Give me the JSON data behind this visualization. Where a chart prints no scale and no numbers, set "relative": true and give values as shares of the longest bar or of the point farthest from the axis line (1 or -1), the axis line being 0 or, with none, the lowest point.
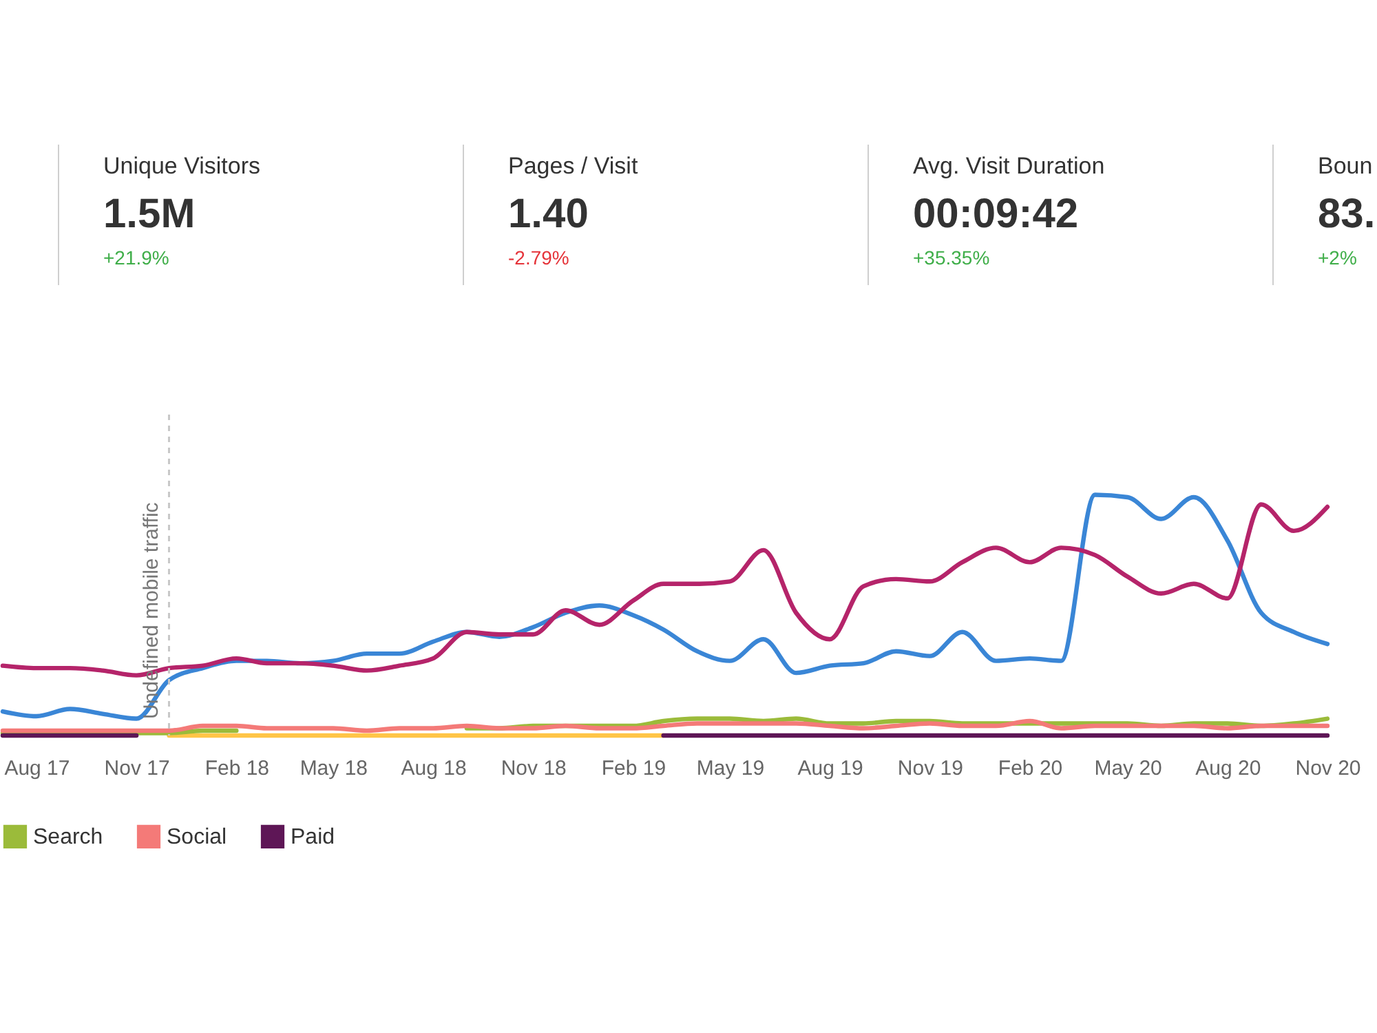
{
  "chart_data": [
    {
      "type": "other",
      "annotations": [
        "Unique Visitors",
        "1.5M",
        "+21.9%",
        "Pages / Visit",
        "1.40",
        "-2.79%",
        "Avg. Visit Duration",
        "00:09:42",
        "+35.35%",
        "Boun",
        "83.",
        "+2%"
      ]
    },
    {
      "type": "line",
      "relative": true,
      "legend": "bottom left",
      "x": [
        "2017-07-01",
        "2017-08-01",
        "2017-09-01",
        "2017-10-01",
        "2017-11-01",
        "2017-12-01",
        "2018-01-01",
        "2018-02-01",
        "2018-03-01",
        "2018-04-01",
        "2018-05-01",
        "2018-06-01",
        "2018-07-01",
        "2018-08-01",
        "2018-09-01",
        "2018-10-01",
        "2018-11-01",
        "2018-12-01",
        "2019-01-01",
        "2019-02-01",
        "2019-03-01",
        "2019-04-01",
        "2019-05-01",
        "2019-06-01",
        "2019-07-01",
        "2019-08-01",
        "2019-09-01",
        "2019-10-01",
        "2019-11-01",
        "2019-12-01",
        "2020-01-01",
        "2020-02-01",
        "2020-03-01",
        "2020-04-01",
        "2020-05-01",
        "2020-06-01",
        "2020-07-01",
        "2020-08-01",
        "2020-09-01",
        "2020-10-01",
        "2020-11-01"
      ],
      "xlim": [
        "2017-07-01",
        "2020-11-01"
      ],
      "xticks": [
        {
          "value": "2017-08-01",
          "label": "Aug 17"
        },
        {
          "value": "2017-11-01",
          "label": "Nov 17"
        },
        {
          "value": "2018-02-01",
          "label": "Feb 18"
        },
        {
          "value": "2018-05-01",
          "label": "May 18"
        },
        {
          "value": "2018-08-01",
          "label": "Aug 18"
        },
        {
          "value": "2018-11-01",
          "label": "Nov 18"
        },
        {
          "value": "2019-02-01",
          "label": "Feb 19"
        },
        {
          "value": "2019-05-01",
          "label": "May 19"
        },
        {
          "value": "2019-08-01",
          "label": "Aug 19"
        },
        {
          "value": "2019-11-01",
          "label": "Nov 19"
        },
        {
          "value": "2020-02-01",
          "label": "Feb 20"
        },
        {
          "value": "2020-05-01",
          "label": "May 20"
        },
        {
          "value": "2020-08-01",
          "label": "Aug 20"
        },
        {
          "value": "2020-11-01",
          "label": "Nov 20"
        }
      ],
      "series": [
        {
          "color": "#ffc547",
          "x": [
            "2017-12-01",
            "2018-03-01",
            "2018-06-01",
            "2018-09-01",
            "2018-12-01",
            "2019-03-01"
          ],
          "values": [
            0,
            0,
            0,
            0,
            0,
            0
          ]
        },
        {
          "color": "#3a86d6",
          "values": [
            0.1,
            0.08,
            0.11,
            0.09,
            0.07,
            0.23,
            0.28,
            0.31,
            0.31,
            0.3,
            0.31,
            0.34,
            0.34,
            0.39,
            0.43,
            0.41,
            0.45,
            0.51,
            0.54,
            0.5,
            0.44,
            0.35,
            0.31,
            0.4,
            0.26,
            0.29,
            0.3,
            0.35,
            0.33,
            0.43,
            0.31,
            0.32,
            0.31,
            1,
            0.99,
            0.9,
            0.99,
            0.81,
            0.51,
            0.43,
            0.38
          ]
        },
        {
          "color": "#b5246a",
          "values": [
            0.29,
            0.28,
            0.28,
            0.27,
            0.25,
            0.28,
            0.29,
            0.32,
            0.3,
            0.3,
            0.29,
            0.27,
            0.29,
            0.32,
            0.43,
            0.42,
            0.42,
            0.52,
            0.46,
            0.56,
            0.63,
            0.63,
            0.64,
            0.77,
            0.51,
            0.4,
            0.62,
            0.65,
            0.64,
            0.72,
            0.78,
            0.72,
            0.78,
            0.75,
            0.66,
            0.59,
            0.63,
            0.57,
            0.96,
            0.85,
            0.95
          ]
        },
        {
          "name": "Search",
          "color": "#9bbb3a",
          "values": [
            0.01,
            0.01,
            0.01,
            0.01,
            0.01,
            0.01,
            0.02,
            0.02,
            null,
            null,
            null,
            null,
            null,
            null,
            0.03,
            0.03,
            0.04,
            0.04,
            0.04,
            0.04,
            0.06,
            0.07,
            0.07,
            0.06,
            0.07,
            0.05,
            0.05,
            0.06,
            0.06,
            0.05,
            0.05,
            0.05,
            0.05,
            0.05,
            0.05,
            0.04,
            0.05,
            0.05,
            0.04,
            0.05,
            0.07
          ]
        },
        {
          "name": "Social",
          "color": "#f47a78",
          "values": [
            0.02,
            0.02,
            0.02,
            0.02,
            0.02,
            0.02,
            0.04,
            0.04,
            0.03,
            0.03,
            0.03,
            0.02,
            0.03,
            0.03,
            0.04,
            0.03,
            0.03,
            0.04,
            0.03,
            0.03,
            0.04,
            0.05,
            0.05,
            0.05,
            0.05,
            0.04,
            0.03,
            0.04,
            0.05,
            0.04,
            0.04,
            0.06,
            0.03,
            0.04,
            0.04,
            0.04,
            0.04,
            0.03,
            0.04,
            0.04,
            0.04
          ]
        },
        {
          "name": "Paid",
          "color": "#5e1656",
          "values": [
            0,
            0,
            0,
            0,
            0,
            null,
            null,
            null,
            null,
            null,
            null,
            null,
            null,
            null,
            null,
            null,
            null,
            null,
            null,
            null,
            0,
            0,
            0,
            0,
            0,
            0,
            0,
            0,
            0,
            0,
            0,
            0,
            0,
            0,
            0,
            0,
            0,
            0,
            0,
            0,
            0
          ]
        }
      ],
      "ref_lines": [
        {
          "axis": "x",
          "value": "2017-12-01",
          "label": "Undefined mobile traffic",
          "color": "#c8c8c8",
          "line_style": "dashed"
        }
      ]
    }
  ]
}
